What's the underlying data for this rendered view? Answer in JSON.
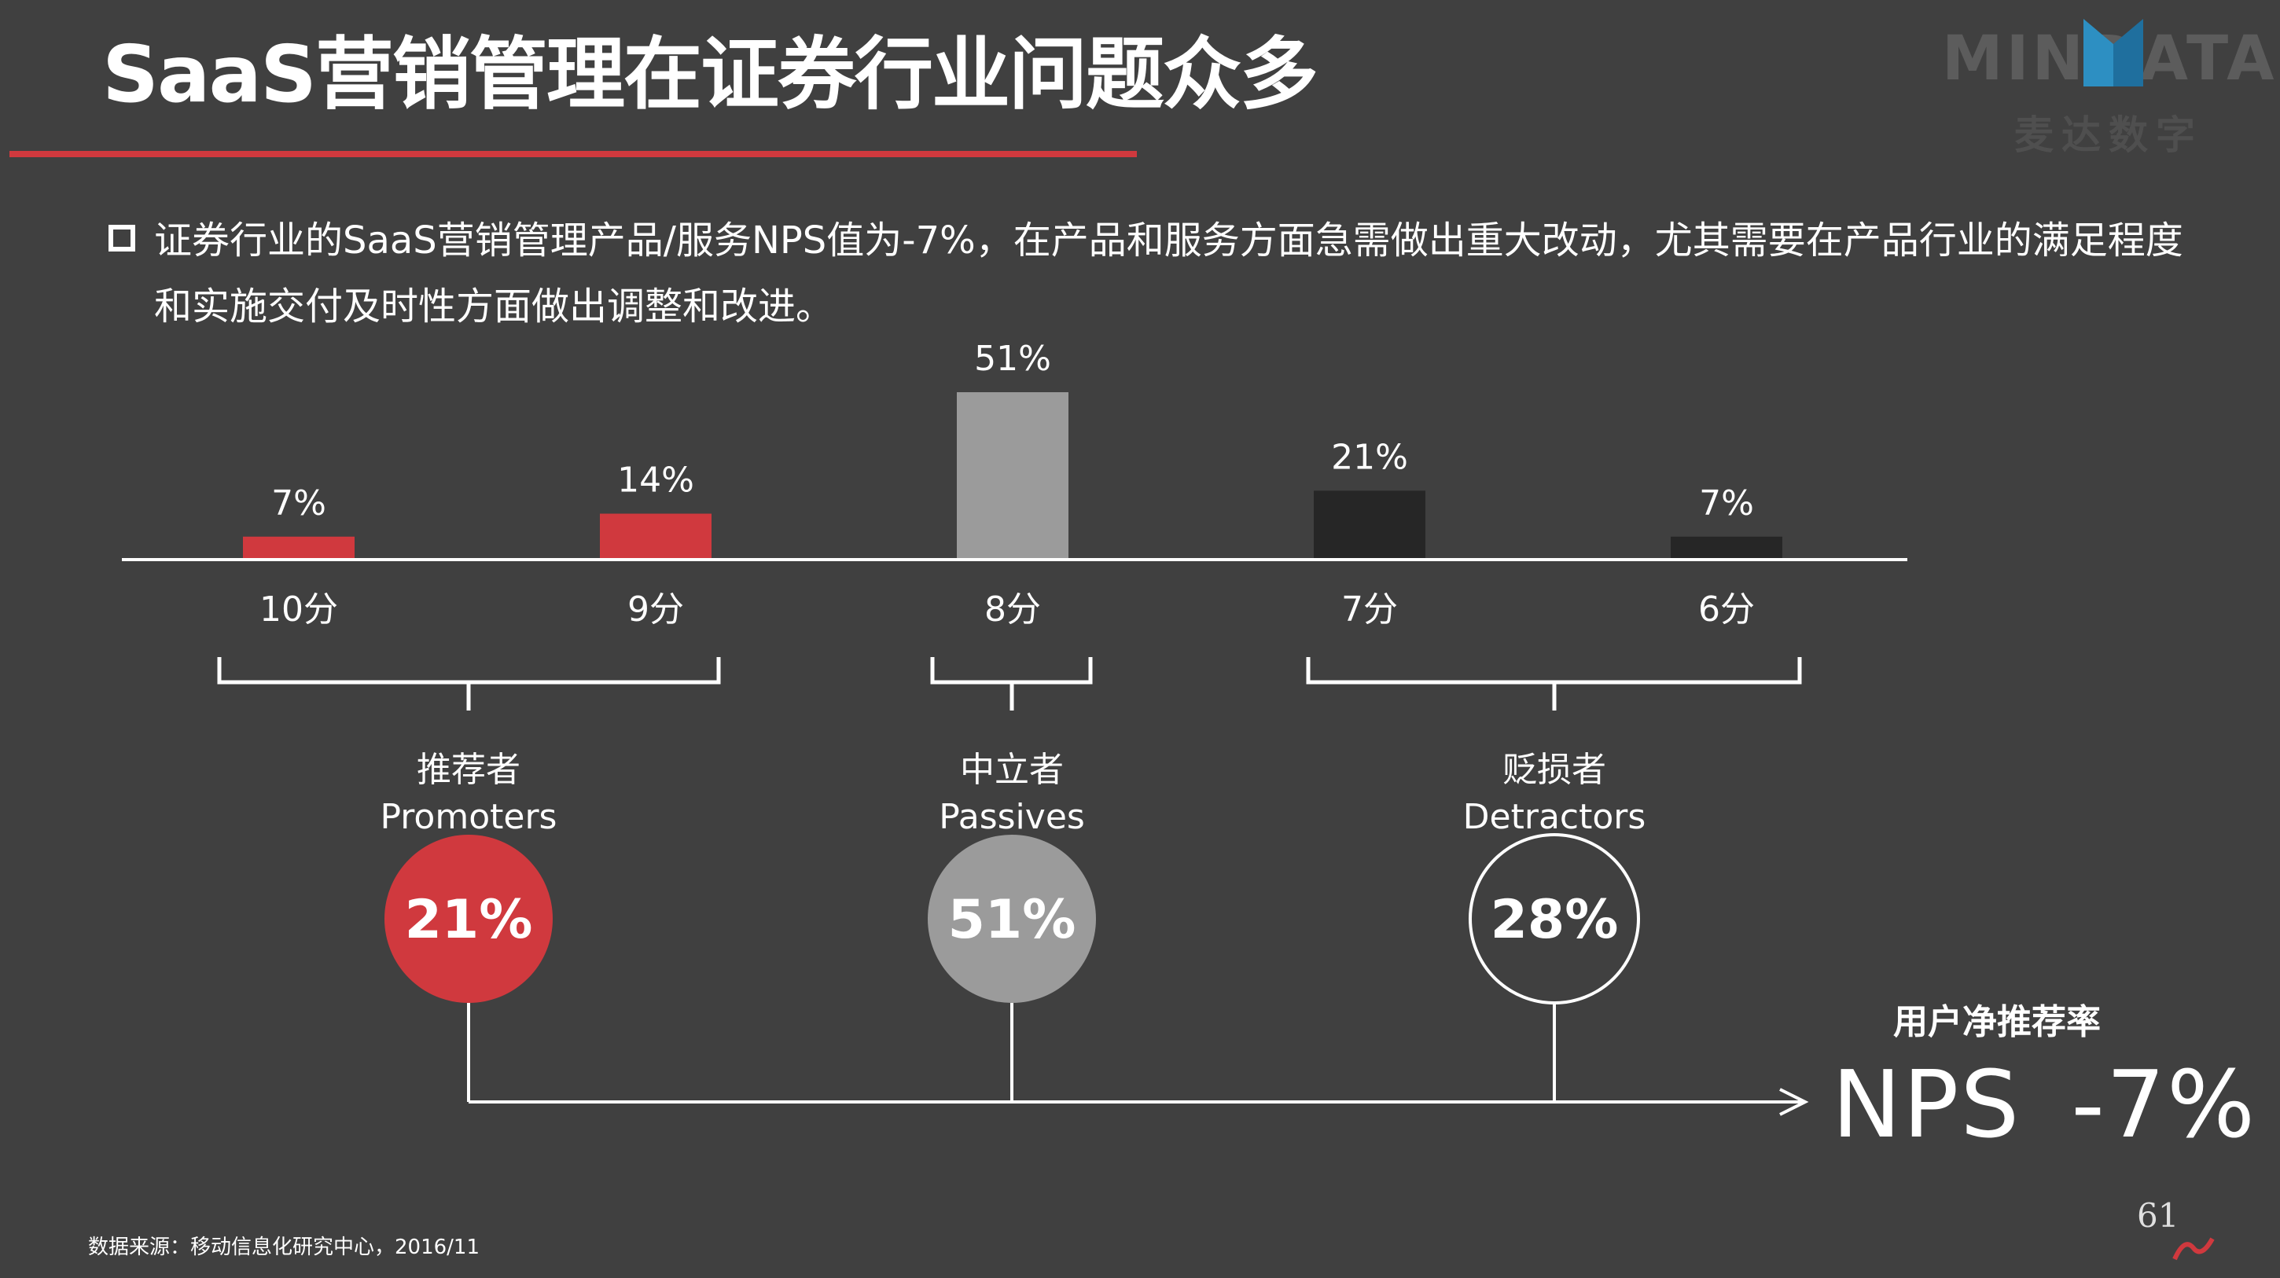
{
  "header": {
    "title": "SaaS营销管理在证券行业问题众多",
    "logo_text": "MINDATA",
    "logo_subtext": "麦达数字"
  },
  "description": "证券行业的SaaS营销管理产品/服务NPS值为-7%，在产品和服务方面急需做出重大改动，尤其需要在产品行业的满足程度和实施交付及时性方面做出调整和改进。",
  "colors": {
    "promoter": "#d0393e",
    "passive": "#9b9b9b",
    "detractor": "#262626",
    "background": "#404040"
  },
  "chart_data": {
    "type": "bar",
    "categories": [
      "10分",
      "9分",
      "8分",
      "7分",
      "6分"
    ],
    "values": [
      7,
      14,
      51,
      21,
      7
    ],
    "value_labels": [
      "7%",
      "14%",
      "51%",
      "21%",
      "7%"
    ],
    "ylim": [
      0,
      51
    ],
    "grid": false
  },
  "segments": [
    {
      "name_cn": "推荐者",
      "name_en": "Promoters",
      "value": "21%"
    },
    {
      "name_cn": "中立者",
      "name_en": "Passives",
      "value": "51%"
    },
    {
      "name_cn": "贬损者",
      "name_en": "Detractors",
      "value": "28%"
    }
  ],
  "nps": {
    "label": "用户净推荐率",
    "prefix": "NPS",
    "value": "-7%"
  },
  "footer": {
    "source": "数据来源：移动信息化研究中心，2016/11",
    "page_number": "61"
  }
}
